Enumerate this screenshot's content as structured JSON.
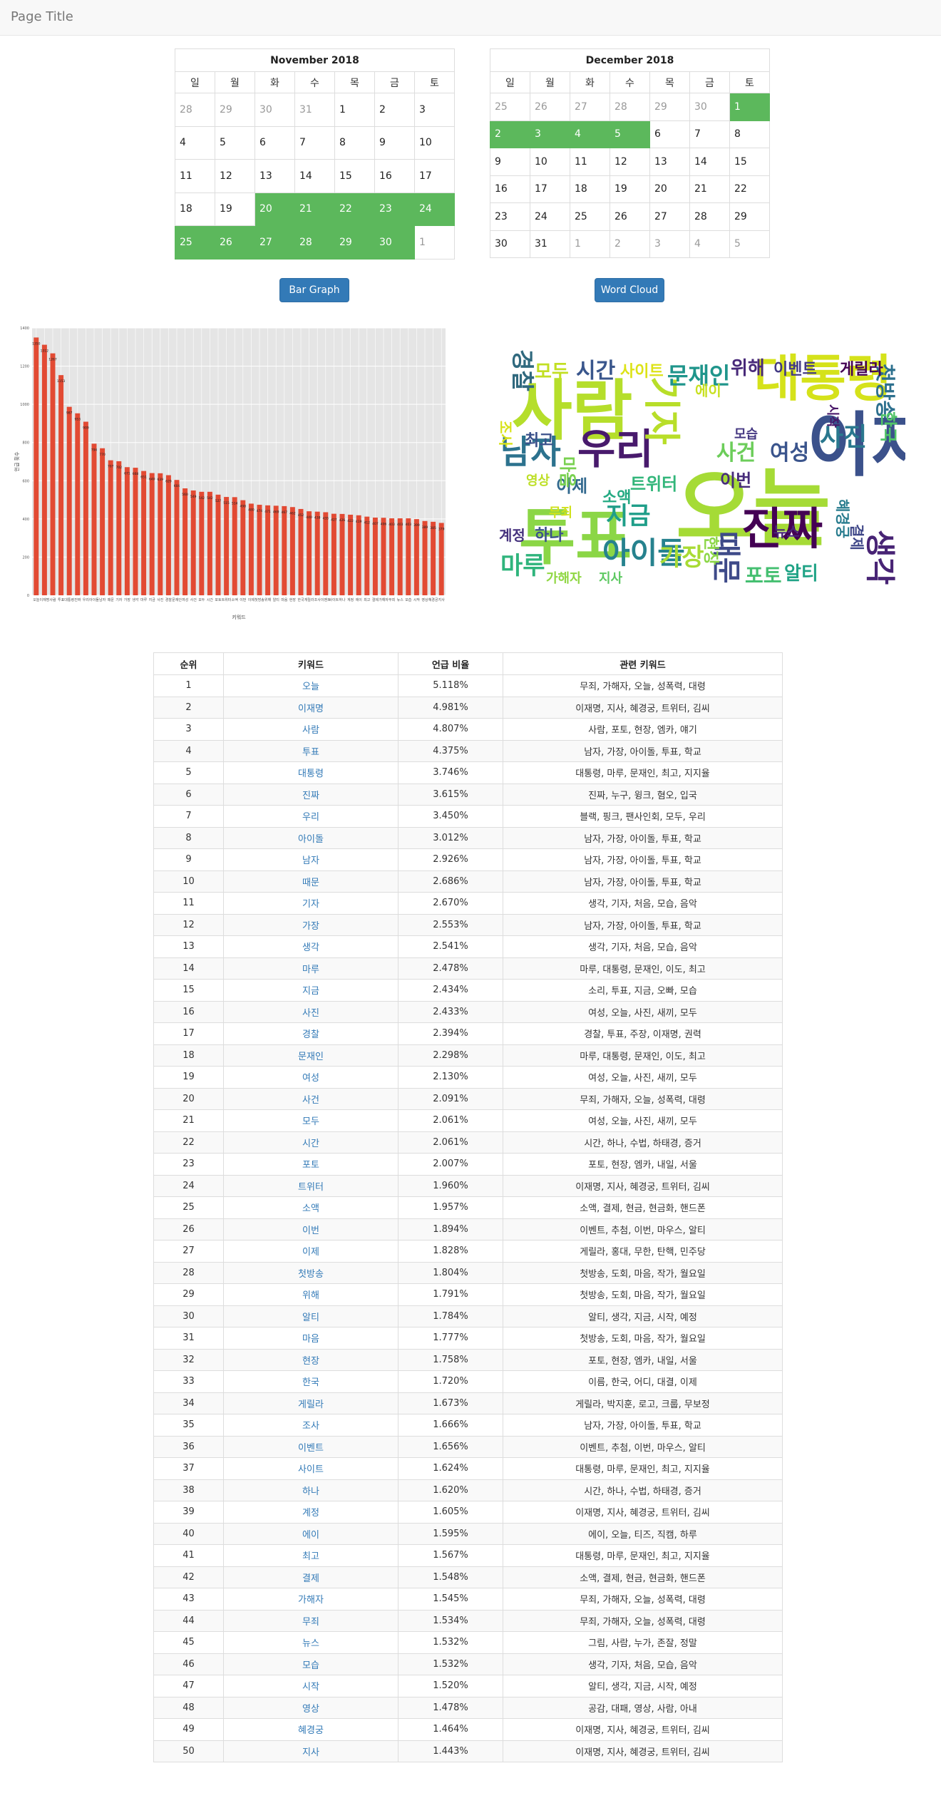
{
  "navbar": {
    "title": "Page Title"
  },
  "calendars": [
    {
      "title": "November 2018",
      "weekdays": [
        "일",
        "월",
        "화",
        "수",
        "목",
        "금",
        "토"
      ],
      "weeks": [
        [
          {
            "d": "28",
            "o": 1
          },
          {
            "d": "29",
            "o": 1
          },
          {
            "d": "30",
            "o": 1
          },
          {
            "d": "31",
            "o": 1
          },
          {
            "d": "1"
          },
          {
            "d": "2"
          },
          {
            "d": "3"
          }
        ],
        [
          {
            "d": "4"
          },
          {
            "d": "5"
          },
          {
            "d": "6"
          },
          {
            "d": "7"
          },
          {
            "d": "8"
          },
          {
            "d": "9"
          },
          {
            "d": "10"
          }
        ],
        [
          {
            "d": "11"
          },
          {
            "d": "12"
          },
          {
            "d": "13"
          },
          {
            "d": "14"
          },
          {
            "d": "15"
          },
          {
            "d": "16"
          },
          {
            "d": "17"
          }
        ],
        [
          {
            "d": "18"
          },
          {
            "d": "19"
          },
          {
            "d": "20",
            "s": 1
          },
          {
            "d": "21",
            "s": 1
          },
          {
            "d": "22",
            "s": 1
          },
          {
            "d": "23",
            "s": 1
          },
          {
            "d": "24",
            "s": 1
          }
        ],
        [
          {
            "d": "25",
            "s": 1
          },
          {
            "d": "26",
            "s": 1
          },
          {
            "d": "27",
            "s": 1
          },
          {
            "d": "28",
            "s": 1
          },
          {
            "d": "29",
            "s": 1
          },
          {
            "d": "30",
            "s": 1
          },
          {
            "d": "1",
            "o": 1
          }
        ]
      ]
    },
    {
      "title": "December 2018",
      "weekdays": [
        "일",
        "월",
        "화",
        "수",
        "목",
        "금",
        "토"
      ],
      "weeks": [
        [
          {
            "d": "25",
            "o": 1
          },
          {
            "d": "26",
            "o": 1
          },
          {
            "d": "27",
            "o": 1
          },
          {
            "d": "28",
            "o": 1
          },
          {
            "d": "29",
            "o": 1
          },
          {
            "d": "30",
            "o": 1
          },
          {
            "d": "1",
            "s": 1
          }
        ],
        [
          {
            "d": "2",
            "s": 1
          },
          {
            "d": "3",
            "s": 1
          },
          {
            "d": "4",
            "s": 1
          },
          {
            "d": "5",
            "s": 1
          },
          {
            "d": "6"
          },
          {
            "d": "7"
          },
          {
            "d": "8"
          }
        ],
        [
          {
            "d": "9"
          },
          {
            "d": "10"
          },
          {
            "d": "11"
          },
          {
            "d": "12"
          },
          {
            "d": "13"
          },
          {
            "d": "14"
          },
          {
            "d": "15"
          }
        ],
        [
          {
            "d": "16"
          },
          {
            "d": "17"
          },
          {
            "d": "18"
          },
          {
            "d": "19"
          },
          {
            "d": "20"
          },
          {
            "d": "21"
          },
          {
            "d": "22"
          }
        ],
        [
          {
            "d": "23"
          },
          {
            "d": "24"
          },
          {
            "d": "25"
          },
          {
            "d": "26"
          },
          {
            "d": "27"
          },
          {
            "d": "28"
          },
          {
            "d": "29"
          }
        ],
        [
          {
            "d": "30"
          },
          {
            "d": "31"
          },
          {
            "d": "1",
            "o": 1
          },
          {
            "d": "2",
            "o": 1
          },
          {
            "d": "3",
            "o": 1
          },
          {
            "d": "4",
            "o": 1
          },
          {
            "d": "5",
            "o": 1
          }
        ]
      ]
    }
  ],
  "buttons": {
    "bar_graph": "Bar Graph",
    "word_cloud": "Word Cloud"
  },
  "colors": {
    "primary": "#337ab7",
    "selected": "#5cb85c",
    "bar": "#e24a33",
    "plot_bg": "#e5e5e5"
  },
  "chart_data": {
    "type": "bar",
    "xlabel": "키워드",
    "ylabel": "언급 횟수",
    "ylim": [
      0,
      1400
    ],
    "yticks": [
      0,
      200,
      400,
      600,
      800,
      1000,
      1200,
      1400
    ],
    "grid": true,
    "categories": [
      "오늘",
      "이재명",
      "사람",
      "투표",
      "대통령",
      "진짜",
      "우리",
      "아이돌",
      "남자",
      "때문",
      "기자",
      "가장",
      "생각",
      "마루",
      "지금",
      "사진",
      "경찰",
      "문재인",
      "여성",
      "사건",
      "모두",
      "시간",
      "포토",
      "트위터",
      "소액",
      "이번",
      "이제",
      "첫방송",
      "위해",
      "알티",
      "마음",
      "현장",
      "한국",
      "게릴라",
      "조사",
      "이벤트",
      "사이트",
      "하나",
      "계정",
      "에이",
      "최고",
      "결제",
      "가해자",
      "무죄",
      "뉴스",
      "모습",
      "시작",
      "영상",
      "혜경궁",
      "지사"
    ],
    "values": [
      1350,
      1312,
      1267,
      1153,
      987,
      953,
      909,
      794,
      770,
      707,
      702,
      671,
      668,
      651,
      640,
      639,
      629,
      604,
      560,
      549,
      542,
      542,
      527,
      515,
      514,
      498,
      480,
      474,
      471,
      469,
      467,
      462,
      452,
      440,
      438,
      435,
      427,
      426,
      422,
      419,
      412,
      407,
      406,
      403,
      403,
      403,
      399,
      389,
      385,
      379
    ]
  },
  "word_cloud": {
    "words": [
      {
        "t": "오늘",
        "c": "#a5db36"
      },
      {
        "t": "이재명",
        "c": "#3b518b"
      },
      {
        "t": "사람",
        "c": "#b5de2b"
      },
      {
        "t": "투표",
        "c": "#8bd646"
      },
      {
        "t": "대통령",
        "c": "#d5e21a"
      },
      {
        "t": "진짜",
        "c": "#440154"
      },
      {
        "t": "우리",
        "c": "#481a6c"
      },
      {
        "t": "아이돌",
        "c": "#26828e"
      },
      {
        "t": "남자",
        "c": "#2c728e"
      },
      {
        "t": "때문",
        "c": "#3e4a89"
      },
      {
        "t": "기자",
        "c": "#b8de29"
      },
      {
        "t": "가장",
        "c": "#a8db34"
      },
      {
        "t": "생각",
        "c": "#482475"
      },
      {
        "t": "마루",
        "c": "#2fb47c"
      },
      {
        "t": "지금",
        "c": "#1f9e89"
      },
      {
        "t": "사진",
        "c": "#2a788e"
      },
      {
        "t": "경찰",
        "c": "#30697e"
      },
      {
        "t": "문재인",
        "c": "#1f958b"
      },
      {
        "t": "여성",
        "c": "#3a548c"
      },
      {
        "t": "사건",
        "c": "#6ccd5a"
      },
      {
        "t": "모두",
        "c": "#c2df23"
      },
      {
        "t": "시간",
        "c": "#39568c"
      },
      {
        "t": "포토",
        "c": "#44bf70"
      },
      {
        "t": "트위터",
        "c": "#32b67a"
      },
      {
        "t": "소액",
        "c": "#24aa83"
      },
      {
        "t": "이번",
        "c": "#472c7a"
      },
      {
        "t": "이제",
        "c": "#31688e"
      },
      {
        "t": "첫방송",
        "c": "#2d708e"
      },
      {
        "t": "위해",
        "c": "#482979"
      },
      {
        "t": "알티",
        "c": "#20a386"
      },
      {
        "t": "마음",
        "c": "#7ad151"
      },
      {
        "t": "현장",
        "c": "#8bd646"
      },
      {
        "t": "한국",
        "c": "#52c569"
      },
      {
        "t": "게릴라",
        "c": "#440154"
      },
      {
        "t": "조사",
        "c": "#d8e219"
      },
      {
        "t": "이벤트",
        "c": "#443b84"
      },
      {
        "t": "사이트",
        "c": "#dde318"
      },
      {
        "t": "하나",
        "c": "#3b528b"
      },
      {
        "t": "계정",
        "c": "#46327e"
      },
      {
        "t": "에이",
        "c": "#c8e020"
      },
      {
        "t": "최고",
        "c": "#3b518b"
      },
      {
        "t": "결제",
        "c": "#3f4788"
      },
      {
        "t": "가해자",
        "c": "#90d743"
      },
      {
        "t": "무죄",
        "c": "#d0e11c"
      },
      {
        "t": "뉴스",
        "c": "#482677"
      },
      {
        "t": "모습",
        "c": "#453882"
      },
      {
        "t": "시작",
        "c": "#481668"
      },
      {
        "t": "영상",
        "c": "#bddf26"
      },
      {
        "t": "혜경궁",
        "c": "#287c8e"
      },
      {
        "t": "지사",
        "c": "#5ec962"
      }
    ]
  },
  "table": {
    "headers": [
      "순위",
      "키워드",
      "언급 비율",
      "관련 키워드"
    ],
    "rows": [
      [
        "1",
        "오늘",
        "5.118%",
        "무죄, 가해자, 오늘, 성폭력, 대령"
      ],
      [
        "2",
        "이재명",
        "4.981%",
        "이재명, 지사, 혜경궁, 트위터, 김씨"
      ],
      [
        "3",
        "사람",
        "4.807%",
        "사람, 포토, 현장, 엠카, 얘기"
      ],
      [
        "4",
        "투표",
        "4.375%",
        "남자, 가장, 아이돌, 투표, 학교"
      ],
      [
        "5",
        "대통령",
        "3.746%",
        "대통령, 마루, 문재인, 최고, 지지율"
      ],
      [
        "6",
        "진짜",
        "3.615%",
        "진짜, 누구, 윙크, 혐오, 입국"
      ],
      [
        "7",
        "우리",
        "3.450%",
        "블랙, 핑크, 팬사인회, 모두, 우리"
      ],
      [
        "8",
        "아이돌",
        "3.012%",
        "남자, 가장, 아이돌, 투표, 학교"
      ],
      [
        "9",
        "남자",
        "2.926%",
        "남자, 가장, 아이돌, 투표, 학교"
      ],
      [
        "10",
        "때문",
        "2.686%",
        "남자, 가장, 아이돌, 투표, 학교"
      ],
      [
        "11",
        "기자",
        "2.670%",
        "생각, 기자, 처음, 모습, 음악"
      ],
      [
        "12",
        "가장",
        "2.553%",
        "남자, 가장, 아이돌, 투표, 학교"
      ],
      [
        "13",
        "생각",
        "2.541%",
        "생각, 기자, 처음, 모습, 음악"
      ],
      [
        "14",
        "마루",
        "2.478%",
        "마루, 대통령, 문재인, 이도, 최고"
      ],
      [
        "15",
        "지금",
        "2.434%",
        "소리, 투표, 지금, 오빠, 모습"
      ],
      [
        "16",
        "사진",
        "2.433%",
        "여성, 오늘, 사진, 새끼, 모두"
      ],
      [
        "17",
        "경찰",
        "2.394%",
        "경찰, 투표, 주장, 이재명, 권력"
      ],
      [
        "18",
        "문재인",
        "2.298%",
        "마루, 대통령, 문재인, 이도, 최고"
      ],
      [
        "19",
        "여성",
        "2.130%",
        "여성, 오늘, 사진, 새끼, 모두"
      ],
      [
        "20",
        "사건",
        "2.091%",
        "무죄, 가해자, 오늘, 성폭력, 대령"
      ],
      [
        "21",
        "모두",
        "2.061%",
        "여성, 오늘, 사진, 새끼, 모두"
      ],
      [
        "22",
        "시간",
        "2.061%",
        "시간, 하나, 수법, 하태경, 증거"
      ],
      [
        "23",
        "포토",
        "2.007%",
        "포토, 현장, 엠카, 내일, 서울"
      ],
      [
        "24",
        "트위터",
        "1.960%",
        "이재명, 지사, 혜경궁, 트위터, 김씨"
      ],
      [
        "25",
        "소액",
        "1.957%",
        "소액, 결제, 현금, 현금화, 핸드폰"
      ],
      [
        "26",
        "이번",
        "1.894%",
        "이벤트, 추첨, 이번, 마우스, 알티"
      ],
      [
        "27",
        "이제",
        "1.828%",
        "게릴라, 홍대, 무한, 탄핵, 민주당"
      ],
      [
        "28",
        "첫방송",
        "1.804%",
        "첫방송, 도회, 마음, 작가, 월요일"
      ],
      [
        "29",
        "위해",
        "1.791%",
        "첫방송, 도회, 마음, 작가, 월요일"
      ],
      [
        "30",
        "알티",
        "1.784%",
        "알티, 생각, 지금, 시작, 예정"
      ],
      [
        "31",
        "마음",
        "1.777%",
        "첫방송, 도회, 마음, 작가, 월요일"
      ],
      [
        "32",
        "현장",
        "1.758%",
        "포토, 현장, 엠카, 내일, 서울"
      ],
      [
        "33",
        "한국",
        "1.720%",
        "이름, 한국, 어디, 대결, 이제"
      ],
      [
        "34",
        "게릴라",
        "1.673%",
        "게릴라, 박지훈, 로고, 크룹, 무보정"
      ],
      [
        "35",
        "조사",
        "1.666%",
        "남자, 가장, 아이돌, 투표, 학교"
      ],
      [
        "36",
        "이벤트",
        "1.656%",
        "이벤트, 추첨, 이번, 마우스, 알티"
      ],
      [
        "37",
        "사이트",
        "1.624%",
        "대통령, 마루, 문재인, 최고, 지지율"
      ],
      [
        "38",
        "하나",
        "1.620%",
        "시간, 하나, 수법, 하태경, 증거"
      ],
      [
        "39",
        "계정",
        "1.605%",
        "이재명, 지사, 혜경궁, 트위터, 김씨"
      ],
      [
        "40",
        "에이",
        "1.595%",
        "에이, 오늘, 티즈, 직캠, 하루"
      ],
      [
        "41",
        "최고",
        "1.567%",
        "대통령, 마루, 문재인, 최고, 지지율"
      ],
      [
        "42",
        "결제",
        "1.548%",
        "소액, 결제, 현금, 현금화, 핸드폰"
      ],
      [
        "43",
        "가해자",
        "1.545%",
        "무죄, 가해자, 오늘, 성폭력, 대령"
      ],
      [
        "44",
        "무죄",
        "1.534%",
        "무죄, 가해자, 오늘, 성폭력, 대령"
      ],
      [
        "45",
        "뉴스",
        "1.532%",
        "그림, 사람, 누가, 존잘, 정말"
      ],
      [
        "46",
        "모습",
        "1.532%",
        "생각, 기자, 처음, 모습, 음악"
      ],
      [
        "47",
        "시작",
        "1.520%",
        "알티, 생각, 지금, 시작, 예정"
      ],
      [
        "48",
        "영상",
        "1.478%",
        "공감, 대패, 영상, 사람, 아내"
      ],
      [
        "49",
        "혜경궁",
        "1.464%",
        "이재명, 지사, 혜경궁, 트위터, 김씨"
      ],
      [
        "50",
        "지사",
        "1.443%",
        "이재명, 지사, 혜경궁, 트위터, 김씨"
      ]
    ]
  }
}
